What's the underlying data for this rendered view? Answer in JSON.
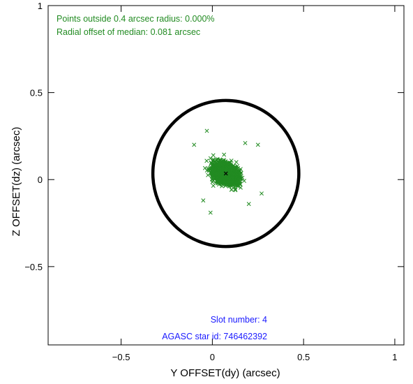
{
  "chart_data": {
    "type": "scatter",
    "xlabel": "Y OFFSET(dy) (arcsec)",
    "ylabel": "Z OFFSET(dz) (arcsec)",
    "xlim": [
      -0.9,
      1.05
    ],
    "ylim": [
      -0.95,
      1.0
    ],
    "xticks": [
      -0.5,
      0,
      0.5,
      1
    ],
    "xtick_labels": [
      "−0.5",
      "0",
      "0.5",
      "1"
    ],
    "yticks": [
      -0.5,
      0,
      0.5,
      1
    ],
    "ytick_labels": [
      "−0.5",
      "0",
      "0.5",
      "1"
    ],
    "grid": false,
    "marker": "x",
    "series": [
      {
        "color": "#228b22",
        "center": [
          0.074,
          0.035
        ],
        "std": [
          0.034,
          0.024
        ],
        "rotation_deg": -33,
        "n_points": 2600,
        "outliers": [
          [
            -0.03,
            0.28
          ],
          [
            -0.1,
            0.2
          ],
          [
            0.25,
            0.2
          ],
          [
            0.18,
            0.21
          ],
          [
            -0.01,
            -0.19
          ],
          [
            -0.05,
            -0.12
          ],
          [
            0.2,
            -0.14
          ],
          [
            0.27,
            -0.08
          ]
        ]
      }
    ],
    "median": [
      0.074,
      0.035
    ],
    "median_color": "#000000",
    "circle": {
      "center": [
        0.074,
        0.035
      ],
      "radius": 0.4,
      "color": "#000000"
    },
    "annotations": {
      "outside": "Points outside 0.4 arcsec radius: 0.000%",
      "median_offset": "Radial offset of median: 0.081 arcsec",
      "slot": "Slot number: 4",
      "agasc": "AGASC star id: 746462392",
      "stats_color": "#228b22",
      "id_color": "#1a1aff"
    }
  }
}
